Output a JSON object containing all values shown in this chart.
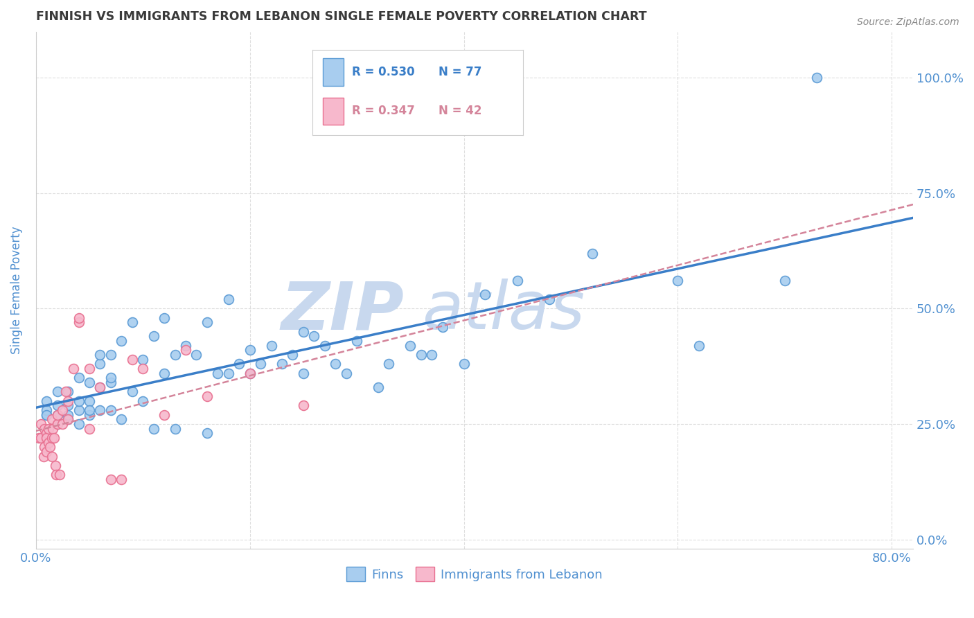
{
  "title": "FINNISH VS IMMIGRANTS FROM LEBANON SINGLE FEMALE POVERTY CORRELATION CHART",
  "source": "Source: ZipAtlas.com",
  "ylabel": "Single Female Poverty",
  "xlim": [
    0.0,
    0.82
  ],
  "ylim": [
    -0.02,
    1.1
  ],
  "legend_r_finns": "R = 0.530",
  "legend_n_finns": "N = 77",
  "legend_r_leb": "R = 0.347",
  "legend_n_leb": "N = 42",
  "legend_label_finns": "Finns",
  "legend_label_leb": "Immigrants from Lebanon",
  "finn_color": "#A8CDEF",
  "leb_color": "#F7B8CC",
  "finn_edge_color": "#5B9BD5",
  "leb_edge_color": "#E87090",
  "finn_line_color": "#3A7EC8",
  "leb_line_color": "#D4849A",
  "watermark_color": "#C8D8EE",
  "grid_color": "#DEDEDE",
  "title_color": "#3A3A3A",
  "axis_tick_color": "#5090D0",
  "ylabel_color": "#5090D0",
  "source_color": "#888888",
  "finn_scatter_x": [
    0.01,
    0.01,
    0.01,
    0.01,
    0.02,
    0.02,
    0.02,
    0.02,
    0.02,
    0.03,
    0.03,
    0.03,
    0.03,
    0.04,
    0.04,
    0.04,
    0.04,
    0.05,
    0.05,
    0.05,
    0.05,
    0.06,
    0.06,
    0.06,
    0.06,
    0.07,
    0.07,
    0.07,
    0.07,
    0.08,
    0.08,
    0.09,
    0.09,
    0.1,
    0.1,
    0.11,
    0.11,
    0.12,
    0.12,
    0.13,
    0.13,
    0.14,
    0.15,
    0.16,
    0.16,
    0.17,
    0.18,
    0.18,
    0.19,
    0.2,
    0.2,
    0.21,
    0.22,
    0.23,
    0.24,
    0.25,
    0.25,
    0.26,
    0.27,
    0.28,
    0.29,
    0.3,
    0.32,
    0.33,
    0.35,
    0.36,
    0.37,
    0.38,
    0.4,
    0.42,
    0.45,
    0.48,
    0.52,
    0.6,
    0.62,
    0.7,
    0.73
  ],
  "finn_scatter_y": [
    0.27,
    0.28,
    0.3,
    0.27,
    0.25,
    0.27,
    0.29,
    0.32,
    0.27,
    0.26,
    0.29,
    0.32,
    0.27,
    0.25,
    0.28,
    0.3,
    0.35,
    0.27,
    0.3,
    0.34,
    0.28,
    0.28,
    0.33,
    0.38,
    0.4,
    0.28,
    0.34,
    0.35,
    0.4,
    0.26,
    0.43,
    0.32,
    0.47,
    0.3,
    0.39,
    0.24,
    0.44,
    0.36,
    0.48,
    0.24,
    0.4,
    0.42,
    0.4,
    0.23,
    0.47,
    0.36,
    0.36,
    0.52,
    0.38,
    0.36,
    0.41,
    0.38,
    0.42,
    0.38,
    0.4,
    0.36,
    0.45,
    0.44,
    0.42,
    0.38,
    0.36,
    0.43,
    0.33,
    0.38,
    0.42,
    0.4,
    0.4,
    0.46,
    0.38,
    0.53,
    0.56,
    0.52,
    0.62,
    0.56,
    0.42,
    0.56,
    1.0
  ],
  "leb_scatter_x": [
    0.003,
    0.005,
    0.005,
    0.007,
    0.008,
    0.008,
    0.01,
    0.01,
    0.01,
    0.012,
    0.012,
    0.013,
    0.015,
    0.015,
    0.015,
    0.016,
    0.017,
    0.018,
    0.019,
    0.02,
    0.02,
    0.022,
    0.025,
    0.025,
    0.028,
    0.03,
    0.03,
    0.035,
    0.04,
    0.04,
    0.05,
    0.05,
    0.06,
    0.07,
    0.08,
    0.09,
    0.1,
    0.12,
    0.14,
    0.16,
    0.2,
    0.25
  ],
  "leb_scatter_y": [
    0.22,
    0.25,
    0.22,
    0.18,
    0.2,
    0.24,
    0.23,
    0.19,
    0.22,
    0.21,
    0.24,
    0.2,
    0.22,
    0.26,
    0.18,
    0.24,
    0.22,
    0.16,
    0.14,
    0.25,
    0.27,
    0.14,
    0.28,
    0.25,
    0.32,
    0.3,
    0.26,
    0.37,
    0.47,
    0.48,
    0.37,
    0.24,
    0.33,
    0.13,
    0.13,
    0.39,
    0.37,
    0.27,
    0.41,
    0.31,
    0.36,
    0.29
  ]
}
